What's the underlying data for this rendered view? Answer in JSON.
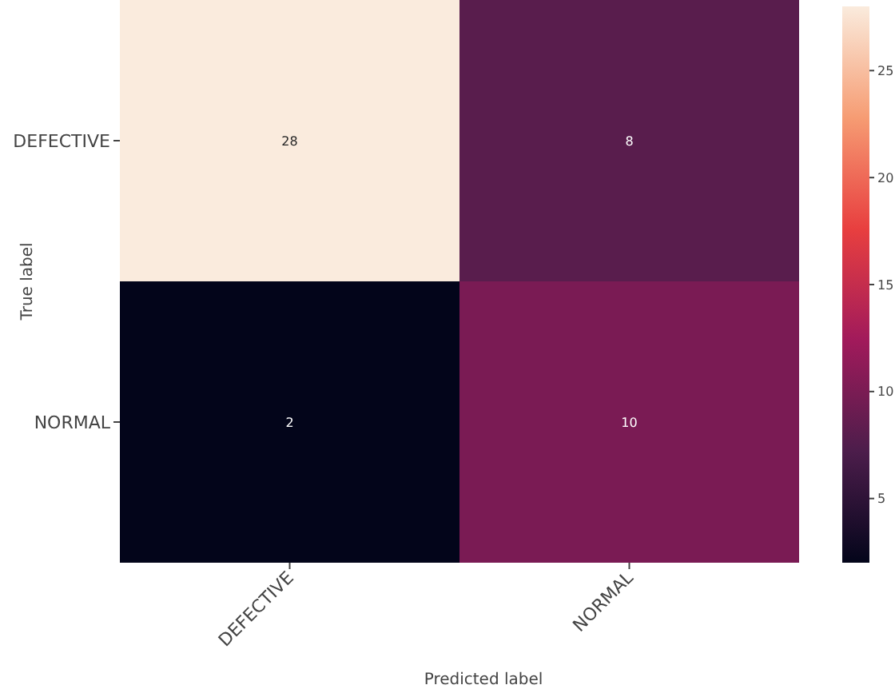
{
  "chart_data": {
    "type": "heatmap",
    "xlabel": "Predicted label",
    "ylabel": "True label",
    "categories": [
      "DEFECTIVE",
      "NORMAL"
    ],
    "y_categories": [
      "DEFECTIVE",
      "NORMAL"
    ],
    "cells": [
      [
        28,
        8
      ],
      [
        2,
        10
      ]
    ],
    "clim": [
      2,
      28
    ],
    "cticks": [
      5,
      10,
      15,
      20,
      25
    ],
    "data_labels": true
  }
}
